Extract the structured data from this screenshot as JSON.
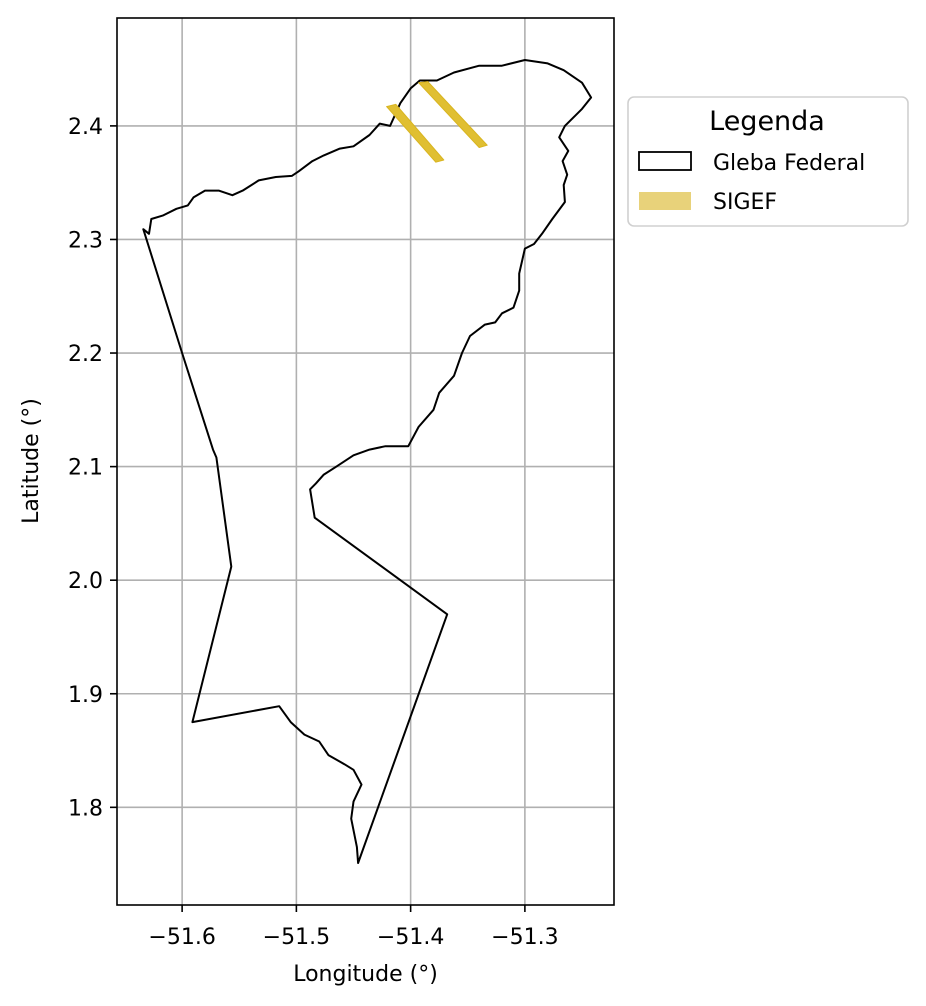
{
  "chart_data": {
    "type": "map",
    "title": "",
    "xlabel": "Longitude (°)",
    "ylabel": "Latitude (°)",
    "xlim": [
      -51.657,
      -51.222
    ],
    "ylim": [
      1.714,
      2.495
    ],
    "x_ticks": [
      -51.6,
      -51.5,
      -51.4,
      -51.3
    ],
    "x_tick_labels": [
      "−51.6",
      "−51.5",
      "−51.4",
      "−51.3"
    ],
    "y_ticks": [
      1.8,
      1.9,
      2.0,
      2.1,
      2.2,
      2.3,
      2.4
    ],
    "y_tick_labels": [
      "1.8",
      "1.9",
      "2.0",
      "2.1",
      "2.2",
      "2.3",
      "2.4"
    ],
    "grid": true,
    "legend": {
      "title": "Legenda",
      "placement": "outside-right-top",
      "entries": [
        {
          "label": "Gleba Federal",
          "style": "outline",
          "edge_color": "#000000",
          "fill_color": "#ffffff"
        },
        {
          "label": "SIGEF",
          "style": "fill",
          "fill_color": "#e8d27a"
        }
      ]
    },
    "layers": [
      {
        "name": "Gleba Federal",
        "type": "polygon",
        "edge_color": "#000000",
        "fill_color": "none",
        "coordinates": [
          [
            -51.634,
            2.309
          ],
          [
            -51.629,
            2.305
          ],
          [
            -51.627,
            2.318
          ],
          [
            -51.617,
            2.321
          ],
          [
            -51.605,
            2.327
          ],
          [
            -51.595,
            2.33
          ],
          [
            -51.59,
            2.337
          ],
          [
            -51.58,
            2.343
          ],
          [
            -51.568,
            2.343
          ],
          [
            -51.556,
            2.339
          ],
          [
            -51.547,
            2.343
          ],
          [
            -51.533,
            2.352
          ],
          [
            -51.518,
            2.355
          ],
          [
            -51.504,
            2.356
          ],
          [
            -51.498,
            2.36
          ],
          [
            -51.486,
            2.369
          ],
          [
            -51.476,
            2.374
          ],
          [
            -51.462,
            2.38
          ],
          [
            -51.45,
            2.382
          ],
          [
            -51.436,
            2.392
          ],
          [
            -51.427,
            2.402
          ],
          [
            -51.418,
            2.4
          ],
          [
            -51.409,
            2.42
          ],
          [
            -51.4,
            2.433
          ],
          [
            -51.392,
            2.44
          ],
          [
            -51.377,
            2.44
          ],
          [
            -51.362,
            2.447
          ],
          [
            -51.34,
            2.453
          ],
          [
            -51.32,
            2.453
          ],
          [
            -51.3,
            2.458
          ],
          [
            -51.28,
            2.455
          ],
          [
            -51.266,
            2.449
          ],
          [
            -51.25,
            2.438
          ],
          [
            -51.242,
            2.425
          ],
          [
            -51.25,
            2.415
          ],
          [
            -51.265,
            2.4
          ],
          [
            -51.27,
            2.39
          ],
          [
            -51.262,
            2.378
          ],
          [
            -51.267,
            2.369
          ],
          [
            -51.263,
            2.357
          ],
          [
            -51.266,
            2.348
          ],
          [
            -51.265,
            2.333
          ],
          [
            -51.276,
            2.318
          ],
          [
            -51.285,
            2.305
          ],
          [
            -51.292,
            2.296
          ],
          [
            -51.3,
            2.292
          ],
          [
            -51.305,
            2.27
          ],
          [
            -51.305,
            2.255
          ],
          [
            -51.31,
            2.24
          ],
          [
            -51.32,
            2.235
          ],
          [
            -51.326,
            2.227
          ],
          [
            -51.335,
            2.225
          ],
          [
            -51.348,
            2.215
          ],
          [
            -51.355,
            2.2
          ],
          [
            -51.362,
            2.18
          ],
          [
            -51.375,
            2.165
          ],
          [
            -51.38,
            2.15
          ],
          [
            -51.393,
            2.135
          ],
          [
            -51.402,
            2.118
          ],
          [
            -51.422,
            2.118
          ],
          [
            -51.436,
            2.115
          ],
          [
            -51.45,
            2.11
          ],
          [
            -51.465,
            2.1
          ],
          [
            -51.476,
            2.093
          ],
          [
            -51.483,
            2.085
          ],
          [
            -51.488,
            2.08
          ],
          [
            -51.484,
            2.055
          ],
          [
            -51.368,
            1.97
          ],
          [
            -51.446,
            1.751
          ],
          [
            -51.447,
            1.765
          ],
          [
            -51.452,
            1.79
          ],
          [
            -51.45,
            1.805
          ],
          [
            -51.443,
            1.82
          ],
          [
            -51.45,
            1.833
          ],
          [
            -51.458,
            1.838
          ],
          [
            -51.472,
            1.846
          ],
          [
            -51.48,
            1.858
          ],
          [
            -51.493,
            1.864
          ],
          [
            -51.505,
            1.875
          ],
          [
            -51.515,
            1.889
          ],
          [
            -51.591,
            1.875
          ],
          [
            -51.557,
            2.012
          ],
          [
            -51.57,
            2.108
          ],
          [
            -51.573,
            2.115
          ],
          [
            -51.6,
            2.2
          ],
          [
            -51.634,
            2.309
          ]
        ]
      },
      {
        "name": "SIGEF",
        "type": "polygon",
        "edge_color": "#d9b520",
        "fill_color": "#e0bf32",
        "features": [
          [
            [
              -51.421,
              2.417
            ],
            [
              -51.413,
              2.419
            ],
            [
              -51.371,
              2.37
            ],
            [
              -51.378,
              2.368
            ]
          ],
          [
            [
              -51.393,
              2.438
            ],
            [
              -51.385,
              2.439
            ],
            [
              -51.333,
              2.383
            ],
            [
              -51.34,
              2.381
            ]
          ]
        ]
      }
    ]
  }
}
